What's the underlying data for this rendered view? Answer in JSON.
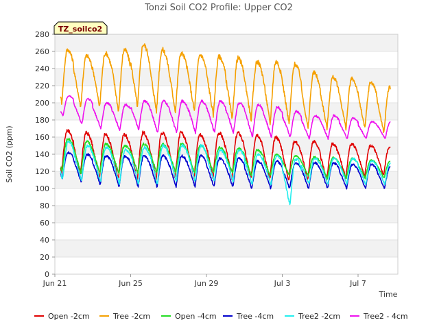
{
  "chart_data": {
    "type": "line",
    "title": "Tonzi Soil CO2 Profile: Upper CO2",
    "site_tag": "TZ_soilco2",
    "xlabel": "Time",
    "ylabel": "Soil CO2 (ppm)",
    "ylim": [
      0,
      280
    ],
    "y_ticks": [
      0,
      20,
      40,
      60,
      80,
      100,
      120,
      140,
      160,
      180,
      200,
      220,
      240,
      260,
      280
    ],
    "x_range_days": [
      0,
      18.1
    ],
    "x_ticks": [
      {
        "day": 0,
        "label": "Jun 21"
      },
      {
        "day": 4,
        "label": "Jun 25"
      },
      {
        "day": 8,
        "label": "Jun 29"
      },
      {
        "day": 12,
        "label": "Jul 3"
      },
      {
        "day": 16,
        "label": "Jul 7"
      }
    ],
    "grid": "horizontal bands",
    "legend_position": "bottom",
    "x_start_day": 0.3,
    "x_end_day": 17.7,
    "series": [
      {
        "name": "Open -2cm",
        "color": "#e00000",
        "daily_min": [
          118,
          115,
          112,
          110,
          110,
          110,
          112,
          113,
          112,
          112,
          110,
          110,
          110,
          110,
          110,
          112,
          113,
          115
        ],
        "daily_max": [
          168,
          165,
          163,
          163,
          165,
          165,
          165,
          163,
          165,
          165,
          163,
          160,
          155,
          155,
          152,
          152,
          150,
          148
        ]
      },
      {
        "name": "Tree -2cm",
        "color": "#f5a000",
        "daily_min": [
          200,
          195,
          195,
          190,
          195,
          190,
          190,
          190,
          185,
          180,
          180,
          175,
          175,
          170,
          170,
          170,
          170,
          165
        ],
        "daily_max": [
          262,
          255,
          258,
          262,
          268,
          262,
          258,
          256,
          254,
          252,
          248,
          248,
          245,
          235,
          230,
          228,
          224,
          218
        ]
      },
      {
        "name": "Open -4cm",
        "color": "#22dd22",
        "daily_min": [
          120,
          118,
          118,
          118,
          118,
          118,
          118,
          118,
          118,
          118,
          115,
          115,
          115,
          115,
          112,
          112,
          112,
          112
        ],
        "daily_max": [
          158,
          155,
          152,
          150,
          152,
          152,
          152,
          150,
          148,
          147,
          145,
          140,
          138,
          137,
          136,
          135,
          133,
          132
        ]
      },
      {
        "name": "Tree -4cm",
        "color": "#0000cc",
        "daily_min": [
          112,
          108,
          105,
          102,
          102,
          102,
          102,
          102,
          102,
          102,
          100,
          100,
          100,
          100,
          100,
          100,
          100,
          100
        ],
        "daily_max": [
          142,
          140,
          138,
          138,
          138,
          138,
          138,
          138,
          135,
          135,
          132,
          132,
          130,
          130,
          130,
          128,
          128,
          125
        ]
      },
      {
        "name": "Tree2 -2cm",
        "color": "#22eeee",
        "daily_min": [
          110,
          108,
          108,
          105,
          105,
          105,
          108,
          108,
          108,
          108,
          105,
          105,
          80,
          105,
          105,
          105,
          105,
          105
        ],
        "daily_max": [
          155,
          150,
          148,
          145,
          148,
          150,
          150,
          150,
          145,
          145,
          140,
          138,
          135,
          135,
          135,
          135,
          132,
          130
        ]
      },
      {
        "name": "Tree2 - 4cm",
        "color": "#ee11ee",
        "daily_min": [
          185,
          175,
          170,
          168,
          168,
          165,
          165,
          165,
          165,
          165,
          160,
          160,
          160,
          158,
          158,
          158,
          158,
          158
        ],
        "daily_max": [
          208,
          205,
          200,
          198,
          202,
          202,
          202,
          202,
          202,
          200,
          198,
          195,
          190,
          185,
          185,
          182,
          178,
          178
        ]
      }
    ]
  }
}
